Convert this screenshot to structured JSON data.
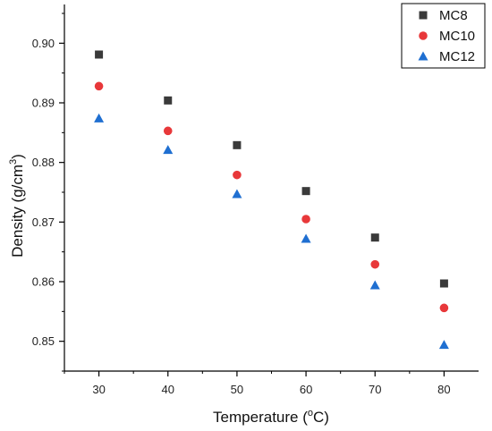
{
  "chart_data": {
    "type": "scatter",
    "xlabel": {
      "pre": "Temperature (",
      "sup": "o",
      "post": "C)"
    },
    "ylabel": {
      "pre": "Density (g/cm",
      "sup": "3",
      "post": ")"
    },
    "xlim": [
      25,
      85
    ],
    "ylim": [
      0.845,
      0.9065
    ],
    "xticks": [
      30,
      40,
      50,
      60,
      70,
      80
    ],
    "yticks": [
      0.85,
      0.86,
      0.87,
      0.88,
      0.89,
      0.9
    ],
    "ytick_labels": [
      "0.85",
      "0.86",
      "0.87",
      "0.88",
      "0.89",
      "0.90"
    ],
    "x": [
      30,
      40,
      50,
      60,
      70,
      80
    ],
    "series": [
      {
        "name": "MC8",
        "marker": "square",
        "color": "#3a3a3a",
        "values": [
          0.8981,
          0.8904,
          0.8829,
          0.8752,
          0.8674,
          0.8597
        ]
      },
      {
        "name": "MC10",
        "marker": "circle",
        "color": "#e8383a",
        "values": [
          0.8928,
          0.8853,
          0.8779,
          0.8705,
          0.8629,
          0.8556
        ]
      },
      {
        "name": "MC12",
        "marker": "triangle",
        "color": "#1f6fd1",
        "values": [
          0.8874,
          0.8821,
          0.8747,
          0.8672,
          0.8594,
          0.8494
        ]
      }
    ],
    "legend_position": "top-right",
    "grid": false
  }
}
